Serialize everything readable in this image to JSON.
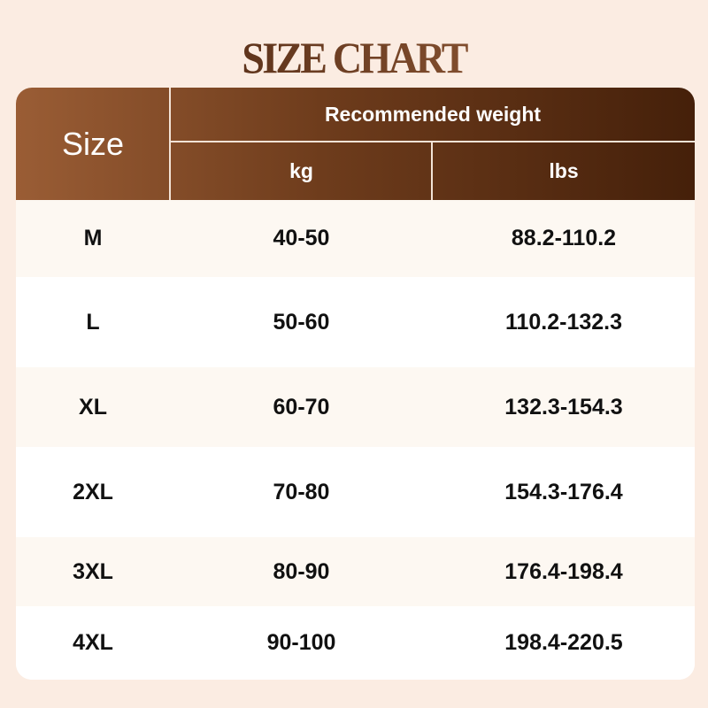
{
  "title": "SIZE CHART",
  "header": {
    "size": "Size",
    "group": "Recommended weight",
    "kg": "kg",
    "lbs": "lbs"
  },
  "colors": {
    "header_start": "#9a5d35",
    "header_end": "#45200a",
    "background": "#fbece2",
    "row_alt": "#fdf8f2"
  },
  "rows": [
    {
      "size": "M",
      "kg": "40-50",
      "lbs": "88.2-110.2"
    },
    {
      "size": "L",
      "kg": "50-60",
      "lbs": "110.2-132.3"
    },
    {
      "size": "XL",
      "kg": "60-70",
      "lbs": "132.3-154.3"
    },
    {
      "size": "2XL",
      "kg": "70-80",
      "lbs": "154.3-176.4"
    },
    {
      "size": "3XL",
      "kg": "80-90",
      "lbs": "176.4-198.4"
    },
    {
      "size": "4XL",
      "kg": "90-100",
      "lbs": "198.4-220.5"
    }
  ]
}
